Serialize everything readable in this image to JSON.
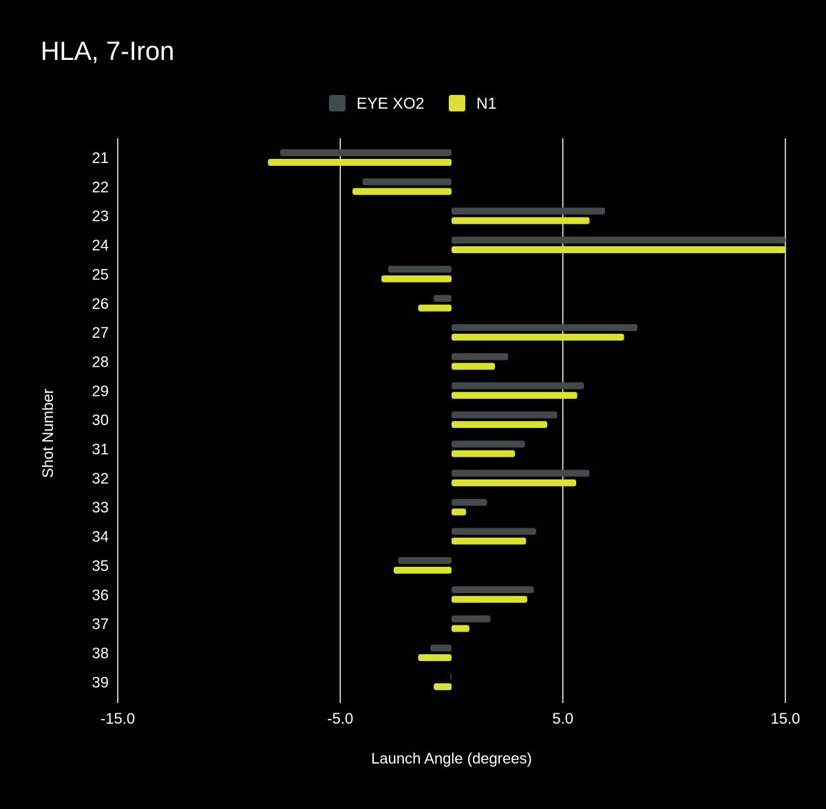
{
  "chart_data": {
    "type": "bar",
    "orientation": "horizontal",
    "title": "HLA, 7-Iron",
    "xlabel": "Launch Angle (degrees)",
    "ylabel": "Shot Number",
    "xlim": [
      -15,
      15
    ],
    "xticks": [
      -15,
      -5,
      5,
      15
    ],
    "xtick_labels": [
      "-15.0",
      "-5.0",
      "5.0",
      "15.0"
    ],
    "grid": true,
    "legend_position": "top-center",
    "categories": [
      "21",
      "22",
      "23",
      "24",
      "25",
      "26",
      "27",
      "28",
      "29",
      "30",
      "31",
      "32",
      "33",
      "34",
      "35",
      "36",
      "37",
      "38",
      "39"
    ],
    "series": [
      {
        "name": "EYE XO2",
        "color": "#434a49",
        "values": [
          -7.7,
          -4.0,
          6.9,
          15.0,
          -2.85,
          -0.8,
          8.35,
          2.55,
          5.95,
          4.75,
          3.3,
          6.2,
          1.6,
          3.8,
          -2.4,
          3.7,
          1.75,
          -0.95,
          -0.05
        ]
      },
      {
        "name": "N1",
        "color": "#dbe132",
        "values": [
          -8.25,
          -4.45,
          6.2,
          15.0,
          -3.15,
          -1.5,
          7.75,
          1.95,
          5.65,
          4.3,
          2.85,
          5.6,
          0.65,
          3.35,
          -2.6,
          3.4,
          0.8,
          -1.5,
          -0.8
        ]
      }
    ]
  }
}
